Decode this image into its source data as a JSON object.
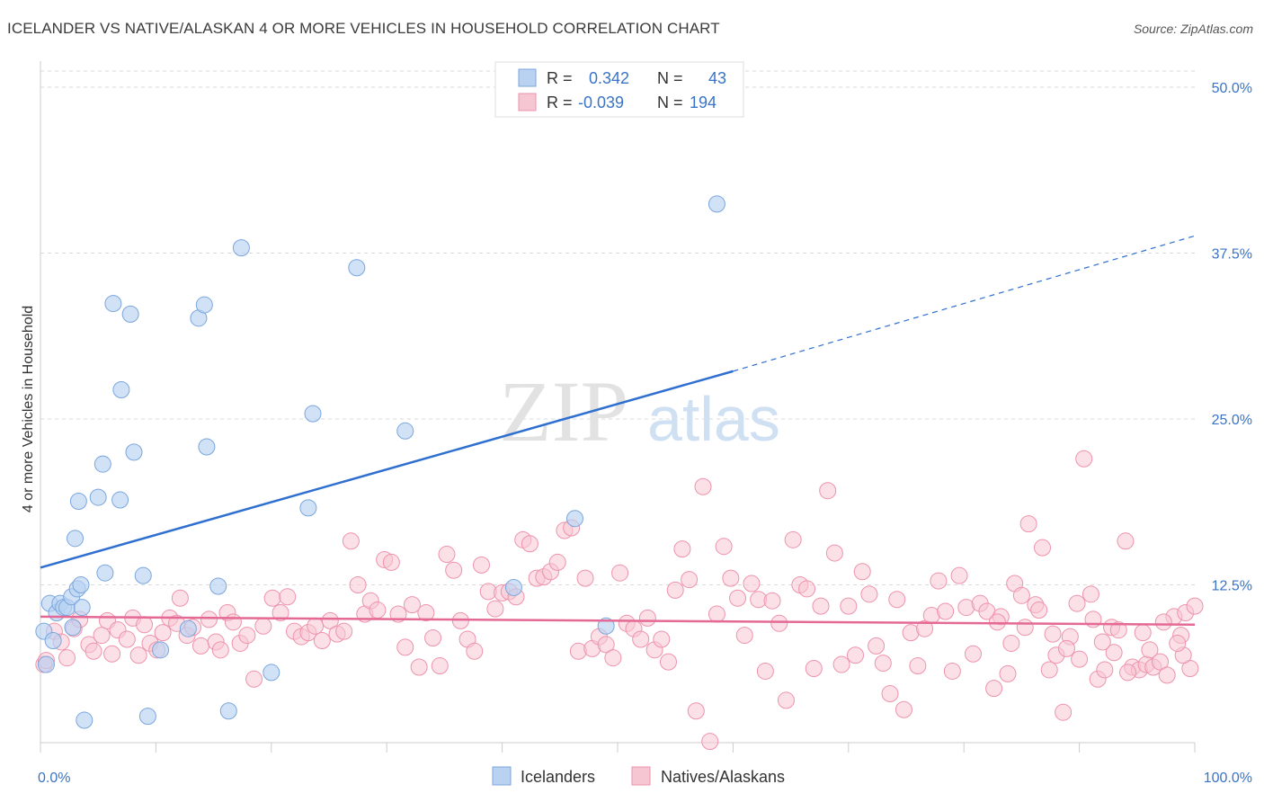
{
  "title": "ICELANDER VS NATIVE/ALASKAN 4 OR MORE VEHICLES IN HOUSEHOLD CORRELATION CHART",
  "source": "Source: ZipAtlas.com",
  "watermark": {
    "zip": "ZIP",
    "atlas": "atlas"
  },
  "colors": {
    "blue_fill": "#b9d2f2",
    "blue_stroke": "#7aa6dc",
    "blue_line": "#2f6fd0",
    "pink_fill": "#f7c6d3",
    "pink_stroke": "#ee93ac",
    "pink_line": "#e46a95",
    "tick_text": "#3a74c6",
    "grid": "#d9d9d9"
  },
  "legend": {
    "row1": {
      "r_label": "R =",
      "r_value": "0.342",
      "n_label": "N =",
      "n_value": "43"
    },
    "row2": {
      "r_label": "R =",
      "r_value": "-0.039",
      "n_label": "N =",
      "n_value": "194"
    }
  },
  "bottom_legend": {
    "series1": "Icelanders",
    "series2": "Natives/Alaskans"
  },
  "chart_data": {
    "type": "scatter",
    "title": "ICELANDER VS NATIVE/ALASKAN 4 OR MORE VEHICLES IN HOUSEHOLD CORRELATION CHART",
    "xlabel": "",
    "ylabel": "4 or more Vehicles in Household",
    "xlim": [
      0,
      100
    ],
    "ylim": [
      0,
      50
    ],
    "x_ticks": [
      "0.0%",
      "100.0%"
    ],
    "y_ticks": [
      "12.5%",
      "25.0%",
      "37.5%",
      "50.0%"
    ],
    "y_tick_values": [
      12.5,
      25,
      37.5,
      50
    ],
    "grid": "horizontal dashed",
    "legend_position": "top-center",
    "series": [
      {
        "name": "Icelanders",
        "r": 0.342,
        "n": 43,
        "trend": {
          "x": [
            0,
            60
          ],
          "y": [
            13.8,
            28.6
          ],
          "dashed_to": [
            100,
            38.8
          ]
        },
        "points": [
          [
            0.3,
            9.0
          ],
          [
            0.5,
            6.5
          ],
          [
            0.8,
            11.1
          ],
          [
            1.1,
            8.3
          ],
          [
            1.4,
            10.4
          ],
          [
            1.7,
            11.1
          ],
          [
            2.0,
            10.8
          ],
          [
            2.3,
            10.8
          ],
          [
            2.7,
            11.6
          ],
          [
            2.8,
            9.3
          ],
          [
            3.0,
            16.0
          ],
          [
            3.2,
            12.2
          ],
          [
            3.5,
            12.5
          ],
          [
            3.6,
            10.8
          ],
          [
            3.3,
            18.8
          ],
          [
            3.8,
            2.3
          ],
          [
            5.0,
            19.1
          ],
          [
            5.4,
            21.6
          ],
          [
            5.6,
            13.4
          ],
          [
            6.3,
            33.7
          ],
          [
            6.9,
            18.9
          ],
          [
            7.0,
            27.2
          ],
          [
            7.8,
            32.9
          ],
          [
            8.1,
            22.5
          ],
          [
            8.9,
            13.2
          ],
          [
            9.3,
            2.6
          ],
          [
            10.4,
            7.6
          ],
          [
            12.8,
            9.2
          ],
          [
            13.7,
            32.6
          ],
          [
            14.2,
            33.6
          ],
          [
            14.4,
            22.9
          ],
          [
            15.4,
            12.4
          ],
          [
            16.3,
            3.0
          ],
          [
            17.4,
            37.9
          ],
          [
            20.0,
            5.9
          ],
          [
            23.2,
            18.3
          ],
          [
            23.6,
            25.4
          ],
          [
            27.4,
            36.4
          ],
          [
            31.6,
            24.1
          ],
          [
            41.0,
            12.3
          ],
          [
            46.3,
            17.5
          ],
          [
            49.0,
            9.4
          ],
          [
            58.6,
            41.2
          ]
        ]
      },
      {
        "name": "Natives/Alaskans",
        "r": -0.039,
        "n": 194,
        "trend": {
          "x": [
            0,
            100
          ],
          "y": [
            10.1,
            9.5
          ]
        },
        "points": [
          [
            0.3,
            6.5
          ],
          [
            0.5,
            6.8
          ],
          [
            1.2,
            9.0
          ],
          [
            1.8,
            8.2
          ],
          [
            2.3,
            7.0
          ],
          [
            2.9,
            9.2
          ],
          [
            3.4,
            9.9
          ],
          [
            4.2,
            8.0
          ],
          [
            4.6,
            7.5
          ],
          [
            5.3,
            8.7
          ],
          [
            5.8,
            9.8
          ],
          [
            6.2,
            7.3
          ],
          [
            6.7,
            9.1
          ],
          [
            7.5,
            8.4
          ],
          [
            8.0,
            10.0
          ],
          [
            8.5,
            7.2
          ],
          [
            9.0,
            9.5
          ],
          [
            9.5,
            8.1
          ],
          [
            10.1,
            7.6
          ],
          [
            10.6,
            8.9
          ],
          [
            11.2,
            10.0
          ],
          [
            11.8,
            9.6
          ],
          [
            12.1,
            11.5
          ],
          [
            12.7,
            8.7
          ],
          [
            13.2,
            9.3
          ],
          [
            13.9,
            7.9
          ],
          [
            14.6,
            9.9
          ],
          [
            15.2,
            8.2
          ],
          [
            15.6,
            7.6
          ],
          [
            16.2,
            10.4
          ],
          [
            16.7,
            9.7
          ],
          [
            17.3,
            8.1
          ],
          [
            17.9,
            8.7
          ],
          [
            18.5,
            5.4
          ],
          [
            19.3,
            9.4
          ],
          [
            20.1,
            11.5
          ],
          [
            20.8,
            10.4
          ],
          [
            21.4,
            11.6
          ],
          [
            22.0,
            9.0
          ],
          [
            22.6,
            8.6
          ],
          [
            23.2,
            8.9
          ],
          [
            23.8,
            9.4
          ],
          [
            24.4,
            8.3
          ],
          [
            25.1,
            9.8
          ],
          [
            25.7,
            8.8
          ],
          [
            26.3,
            9.0
          ],
          [
            26.9,
            15.8
          ],
          [
            27.5,
            12.5
          ],
          [
            28.1,
            10.3
          ],
          [
            28.6,
            11.3
          ],
          [
            29.2,
            10.6
          ],
          [
            29.8,
            14.4
          ],
          [
            30.4,
            14.2
          ],
          [
            31.0,
            10.3
          ],
          [
            31.6,
            7.8
          ],
          [
            32.2,
            11.0
          ],
          [
            32.8,
            6.3
          ],
          [
            33.4,
            10.4
          ],
          [
            34.0,
            8.5
          ],
          [
            34.6,
            6.4
          ],
          [
            35.2,
            14.8
          ],
          [
            35.8,
            13.6
          ],
          [
            36.4,
            9.8
          ],
          [
            37.0,
            8.4
          ],
          [
            37.6,
            7.5
          ],
          [
            38.2,
            14.0
          ],
          [
            38.8,
            12.0
          ],
          [
            39.4,
            10.7
          ],
          [
            40.0,
            11.9
          ],
          [
            40.6,
            12.0
          ],
          [
            41.2,
            11.6
          ],
          [
            41.8,
            15.9
          ],
          [
            42.4,
            15.6
          ],
          [
            43.0,
            13.0
          ],
          [
            43.6,
            13.1
          ],
          [
            44.2,
            13.5
          ],
          [
            44.8,
            14.2
          ],
          [
            45.4,
            16.6
          ],
          [
            46.0,
            16.8
          ],
          [
            46.6,
            7.5
          ],
          [
            47.2,
            13.0
          ],
          [
            47.8,
            7.7
          ],
          [
            48.4,
            8.6
          ],
          [
            49.0,
            8.0
          ],
          [
            49.6,
            7.0
          ],
          [
            50.2,
            13.4
          ],
          [
            50.8,
            9.6
          ],
          [
            51.4,
            9.2
          ],
          [
            52.0,
            8.4
          ],
          [
            52.6,
            10.0
          ],
          [
            53.2,
            7.6
          ],
          [
            53.8,
            8.4
          ],
          [
            54.4,
            6.7
          ],
          [
            55.0,
            12.1
          ],
          [
            55.6,
            15.2
          ],
          [
            56.2,
            12.9
          ],
          [
            56.8,
            3.0
          ],
          [
            57.4,
            19.9
          ],
          [
            58.0,
            0.7
          ],
          [
            58.6,
            10.3
          ],
          [
            59.2,
            15.4
          ],
          [
            59.8,
            13.0
          ],
          [
            60.4,
            11.5
          ],
          [
            61.0,
            8.7
          ],
          [
            61.6,
            12.6
          ],
          [
            62.2,
            11.4
          ],
          [
            62.8,
            6.0
          ],
          [
            63.4,
            11.3
          ],
          [
            64.0,
            9.6
          ],
          [
            64.6,
            3.8
          ],
          [
            65.2,
            15.9
          ],
          [
            65.8,
            12.5
          ],
          [
            66.4,
            12.2
          ],
          [
            67.0,
            6.2
          ],
          [
            67.6,
            10.9
          ],
          [
            68.2,
            19.6
          ],
          [
            68.8,
            14.9
          ],
          [
            69.4,
            6.5
          ],
          [
            70.0,
            10.9
          ],
          [
            70.6,
            7.2
          ],
          [
            71.2,
            13.5
          ],
          [
            71.8,
            11.8
          ],
          [
            72.4,
            7.9
          ],
          [
            73.0,
            6.6
          ],
          [
            73.6,
            4.3
          ],
          [
            74.2,
            11.4
          ],
          [
            74.8,
            3.1
          ],
          [
            75.4,
            8.9
          ],
          [
            76.0,
            6.4
          ],
          [
            76.6,
            9.2
          ],
          [
            77.2,
            10.2
          ],
          [
            77.8,
            12.8
          ],
          [
            78.4,
            10.5
          ],
          [
            79.0,
            6.0
          ],
          [
            79.6,
            13.2
          ],
          [
            80.2,
            10.8
          ],
          [
            80.8,
            7.3
          ],
          [
            81.4,
            11.1
          ],
          [
            82.0,
            10.5
          ],
          [
            82.6,
            4.7
          ],
          [
            83.2,
            10.1
          ],
          [
            83.8,
            5.8
          ],
          [
            84.4,
            12.6
          ],
          [
            85.0,
            11.7
          ],
          [
            85.6,
            17.1
          ],
          [
            86.2,
            11.0
          ],
          [
            86.8,
            15.3
          ],
          [
            87.4,
            6.1
          ],
          [
            88.0,
            7.2
          ],
          [
            88.6,
            2.9
          ],
          [
            89.2,
            8.6
          ],
          [
            89.8,
            11.1
          ],
          [
            90.4,
            22.0
          ],
          [
            91.0,
            11.8
          ],
          [
            91.6,
            5.4
          ],
          [
            92.2,
            6.1
          ],
          [
            92.8,
            9.3
          ],
          [
            93.4,
            9.1
          ],
          [
            94.0,
            15.8
          ],
          [
            94.6,
            6.3
          ],
          [
            95.2,
            6.1
          ],
          [
            95.8,
            6.5
          ],
          [
            96.4,
            6.3
          ],
          [
            97.0,
            6.7
          ],
          [
            97.6,
            5.7
          ],
          [
            98.2,
            10.1
          ],
          [
            98.8,
            8.7
          ],
          [
            99.2,
            10.4
          ],
          [
            99.6,
            6.2
          ],
          [
            100.0,
            10.9
          ],
          [
            99.0,
            7.2
          ],
          [
            98.5,
            8.1
          ],
          [
            97.3,
            9.7
          ],
          [
            96.1,
            7.6
          ],
          [
            95.5,
            8.9
          ],
          [
            94.2,
            5.9
          ],
          [
            93.0,
            7.4
          ],
          [
            92.0,
            8.2
          ],
          [
            91.2,
            9.9
          ],
          [
            90.0,
            6.9
          ],
          [
            88.9,
            7.7
          ],
          [
            87.7,
            8.8
          ],
          [
            86.5,
            10.6
          ],
          [
            85.3,
            9.3
          ],
          [
            84.1,
            8.1
          ],
          [
            82.9,
            9.7
          ]
        ]
      }
    ]
  }
}
